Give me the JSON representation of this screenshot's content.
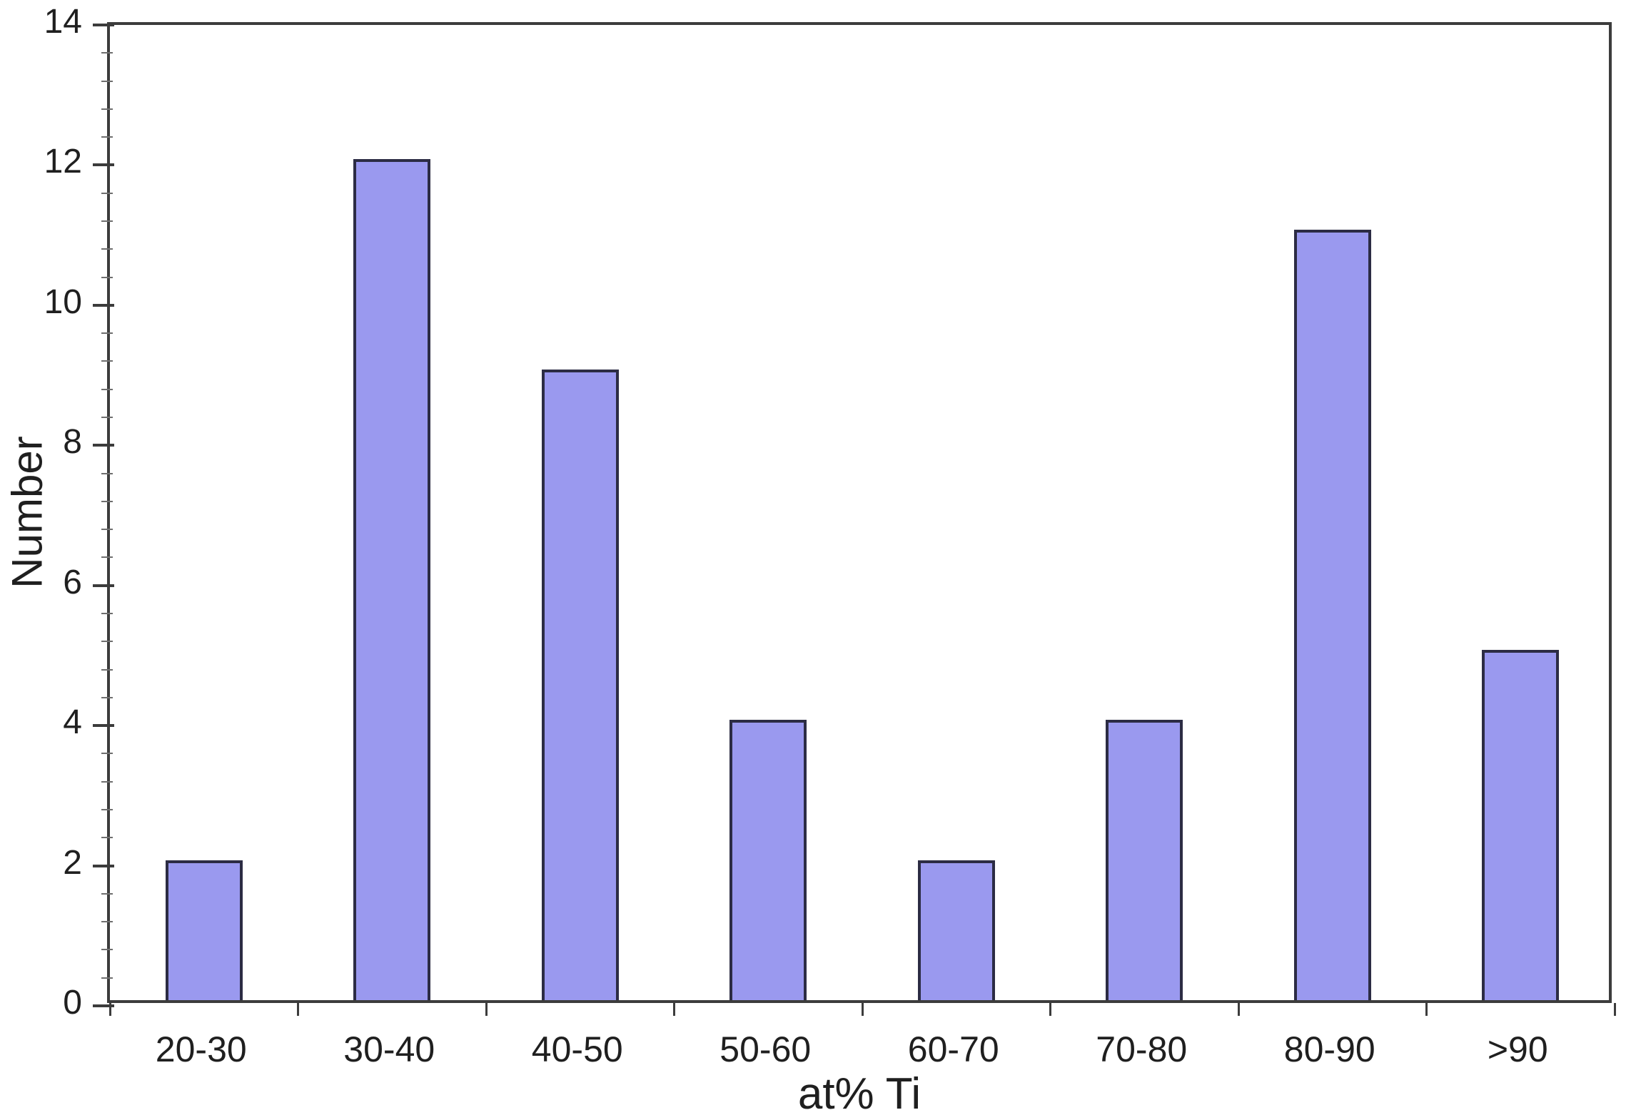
{
  "chart_data": {
    "type": "bar",
    "title": "",
    "categories": [
      "20-30",
      "30-40",
      "40-50",
      "50-60",
      "60-70",
      "70-80",
      "80-90",
      ">90"
    ],
    "values": [
      2,
      12,
      9,
      4,
      2,
      4,
      11,
      5
    ],
    "xlabel": "at% Ti",
    "ylabel": "Number",
    "ylim": [
      0,
      14
    ],
    "y_ticks": [
      0,
      2,
      4,
      6,
      8,
      10,
      12,
      14
    ],
    "y_minor_tick_step": 0.4,
    "grid": false,
    "legend": false,
    "colors": {
      "bar_fill": "#9a99ef",
      "bar_border": "#2c2c44",
      "axis": "#3c3c3c",
      "text": "#1f1f1f",
      "background": "#ffffff"
    }
  }
}
